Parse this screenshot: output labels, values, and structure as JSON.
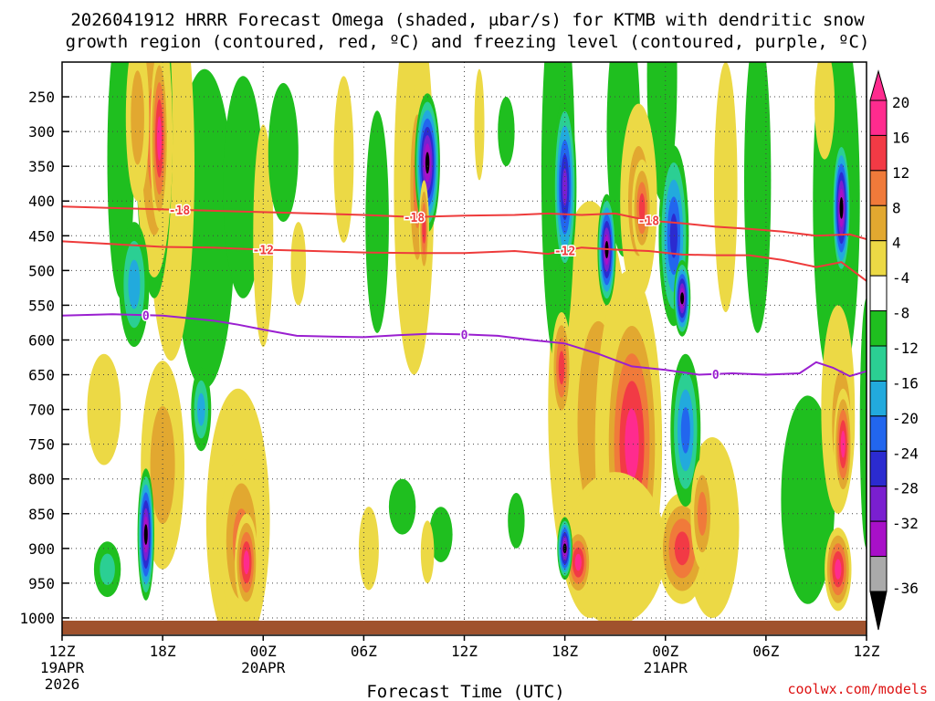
{
  "chart_data": {
    "type": "heatmap",
    "title_line1": "2026041912 HRRR Forecast Omega (shaded, μbar/s) for KTMB with dendritic snow",
    "title_line2": "growth region (contoured, red, ºC) and freezing level (contoured, purple, ºC)",
    "xlabel": "Forecast Time (UTC)",
    "credit": "coolwx.com/models",
    "x_range_hours": [
      0,
      48
    ],
    "y_range_hpa": [
      200,
      1025
    ],
    "x_ticks": [
      {
        "hour": 0,
        "label": "12Z",
        "sub1": "19APR",
        "sub2": "2026"
      },
      {
        "hour": 6,
        "label": "18Z",
        "sub1": "",
        "sub2": ""
      },
      {
        "hour": 12,
        "label": "00Z",
        "sub1": "20APR",
        "sub2": ""
      },
      {
        "hour": 18,
        "label": "06Z",
        "sub1": "",
        "sub2": ""
      },
      {
        "hour": 24,
        "label": "12Z",
        "sub1": "",
        "sub2": ""
      },
      {
        "hour": 30,
        "label": "18Z",
        "sub1": "",
        "sub2": ""
      },
      {
        "hour": 36,
        "label": "00Z",
        "sub1": "21APR",
        "sub2": ""
      },
      {
        "hour": 42,
        "label": "06Z",
        "sub1": "",
        "sub2": ""
      },
      {
        "hour": 48,
        "label": "12Z",
        "sub1": "",
        "sub2": ""
      }
    ],
    "y_ticks": [
      250,
      300,
      350,
      400,
      450,
      500,
      550,
      600,
      650,
      700,
      750,
      800,
      850,
      900,
      950,
      1000
    ],
    "colorbar": [
      {
        "label": "20",
        "color": "#ff2b8e"
      },
      {
        "label": "16",
        "color": "#f23a45"
      },
      {
        "label": "12",
        "color": "#f07a3a"
      },
      {
        "label": "8",
        "color": "#e2a830"
      },
      {
        "label": "4",
        "color": "#ecd945"
      },
      {
        "label": "-4",
        "color": "#ffffff"
      },
      {
        "label": "-8",
        "color": "#1fbf1f"
      },
      {
        "label": "-12",
        "color": "#2bcf93"
      },
      {
        "label": "-16",
        "color": "#22aadd"
      },
      {
        "label": "-20",
        "color": "#2266ee"
      },
      {
        "label": "-24",
        "color": "#2b2bd0"
      },
      {
        "label": "-28",
        "color": "#7a1fd0"
      },
      {
        "label": "-32",
        "color": "#a810c8"
      },
      {
        "label": "-36",
        "color": "#aaaaaa"
      }
    ],
    "colorbar_extend_low": "#000000",
    "colorbar_extend_high": "#ff2b8e",
    "ground_color": "#a0522d",
    "series": [
      {
        "name": "-18C isotherm",
        "label": "-18",
        "color": "#ee3b3b",
        "x": [
          0,
          3,
          6,
          9,
          12,
          15,
          18,
          21,
          24,
          27,
          29,
          31,
          33,
          35,
          37,
          39,
          41,
          43,
          45,
          47,
          48
        ],
        "y": [
          408,
          410,
          412,
          414,
          416,
          418,
          420,
          423,
          421,
          420,
          418,
          420,
          418,
          428,
          432,
          437,
          440,
          444,
          450,
          448,
          455
        ],
        "label_at": [
          7,
          21,
          35
        ]
      },
      {
        "name": "-12C isotherm",
        "label": "-12",
        "color": "#ee3b3b",
        "x": [
          0,
          3,
          6,
          9,
          12,
          15,
          18,
          21,
          24,
          27,
          29,
          31,
          33,
          35,
          37,
          39,
          41,
          43,
          45,
          46.5,
          48
        ],
        "y": [
          458,
          462,
          466,
          467,
          470,
          472,
          474,
          475,
          475,
          472,
          476,
          467,
          470,
          472,
          477,
          478,
          478,
          485,
          495,
          488,
          515
        ],
        "label_at": [
          12,
          30
        ]
      },
      {
        "name": "Freezing level",
        "label": "0",
        "color": "#9a1fd0",
        "x": [
          0,
          3,
          6,
          9,
          10.5,
          12,
          14,
          16,
          18,
          20,
          22,
          24,
          26,
          28,
          30,
          32,
          34,
          36,
          38,
          40,
          42,
          44,
          45,
          46,
          47,
          48
        ],
        "y": [
          565,
          563,
          565,
          572,
          578,
          585,
          594,
          595,
          596,
          593,
          591,
          592,
          594,
          600,
          605,
          620,
          638,
          643,
          650,
          648,
          650,
          648,
          632,
          640,
          652,
          645
        ],
        "label_at": [
          5,
          24,
          39
        ]
      }
    ],
    "omega_cells": [
      {
        "x": 21.8,
        "y": 345,
        "rx": 0.75,
        "ry": 100,
        "min": -36
      },
      {
        "x": 32.5,
        "y": 470,
        "rx": 0.55,
        "ry": 80,
        "min": -36
      },
      {
        "x": 37.0,
        "y": 540,
        "rx": 0.5,
        "ry": 55,
        "min": -36
      },
      {
        "x": 46.5,
        "y": 410,
        "rx": 0.55,
        "ry": 100,
        "min": -36
      },
      {
        "x": 5.0,
        "y": 880,
        "rx": 0.5,
        "ry": 95,
        "min": -36
      },
      {
        "x": 30.0,
        "y": 900,
        "rx": 0.45,
        "ry": 45,
        "min": -36
      },
      {
        "x": 30.0,
        "y": 380,
        "rx": 0.7,
        "ry": 130,
        "min": -28
      },
      {
        "x": 36.5,
        "y": 450,
        "rx": 0.9,
        "ry": 130,
        "min": -24
      },
      {
        "x": 37.2,
        "y": 730,
        "rx": 0.9,
        "ry": 110,
        "min": -20
      },
      {
        "x": 4.3,
        "y": 520,
        "rx": 0.9,
        "ry": 90,
        "min": -16
      },
      {
        "x": 8.3,
        "y": 700,
        "rx": 0.6,
        "ry": 60,
        "min": -16
      },
      {
        "x": 2.7,
        "y": 930,
        "rx": 0.8,
        "ry": 40,
        "min": -12
      },
      {
        "x": 3.5,
        "y": 340,
        "rx": 0.8,
        "ry": 200,
        "min": -8
      },
      {
        "x": 5.5,
        "y": 300,
        "rx": 1.1,
        "ry": 240,
        "min": -8
      },
      {
        "x": 8.5,
        "y": 440,
        "rx": 1.8,
        "ry": 230,
        "min": -8
      },
      {
        "x": 10.8,
        "y": 380,
        "rx": 1.2,
        "ry": 160,
        "min": -8
      },
      {
        "x": 13.2,
        "y": 330,
        "rx": 0.9,
        "ry": 100,
        "min": -8
      },
      {
        "x": 18.8,
        "y": 430,
        "rx": 0.7,
        "ry": 160,
        "min": -8
      },
      {
        "x": 20.3,
        "y": 840,
        "rx": 0.8,
        "ry": 40,
        "min": -8
      },
      {
        "x": 27.1,
        "y": 860,
        "rx": 0.5,
        "ry": 40,
        "min": -8
      },
      {
        "x": 29.6,
        "y": 360,
        "rx": 1.0,
        "ry": 280,
        "min": -8
      },
      {
        "x": 33.5,
        "y": 300,
        "rx": 1.0,
        "ry": 180,
        "min": -8
      },
      {
        "x": 35.8,
        "y": 220,
        "rx": 0.9,
        "ry": 180,
        "min": -8
      },
      {
        "x": 41.5,
        "y": 370,
        "rx": 0.8,
        "ry": 220,
        "min": -8
      },
      {
        "x": 46.2,
        "y": 400,
        "rx": 1.4,
        "ry": 280,
        "min": -8
      },
      {
        "x": 44.5,
        "y": 830,
        "rx": 1.6,
        "ry": 150,
        "min": -8
      },
      {
        "x": 48.0,
        "y": 720,
        "rx": 0.4,
        "ry": 180,
        "min": -8
      },
      {
        "x": 5.8,
        "y": 310,
        "rx": 0.55,
        "ry": 130,
        "min": 20
      },
      {
        "x": 5.5,
        "y": 310,
        "rx": 1.1,
        "ry": 200,
        "min": 12
      },
      {
        "x": 4.5,
        "y": 280,
        "rx": 0.7,
        "ry": 120,
        "min": 8
      },
      {
        "x": 6.5,
        "y": 350,
        "rx": 1.4,
        "ry": 280,
        "min": 4
      },
      {
        "x": 2.5,
        "y": 700,
        "rx": 1.0,
        "ry": 80,
        "min": 4
      },
      {
        "x": 6.0,
        "y": 780,
        "rx": 1.3,
        "ry": 150,
        "min": 8
      },
      {
        "x": 12.0,
        "y": 450,
        "rx": 0.6,
        "ry": 160,
        "min": 4
      },
      {
        "x": 11.0,
        "y": 920,
        "rx": 0.7,
        "ry": 70,
        "min": 20
      },
      {
        "x": 10.7,
        "y": 890,
        "rx": 1.3,
        "ry": 120,
        "min": 12
      },
      {
        "x": 10.5,
        "y": 860,
        "rx": 1.9,
        "ry": 190,
        "min": 4
      },
      {
        "x": 14.1,
        "y": 490,
        "rx": 0.45,
        "ry": 60,
        "min": 4
      },
      {
        "x": 16.8,
        "y": 340,
        "rx": 0.6,
        "ry": 120,
        "min": 4
      },
      {
        "x": 21.0,
        "y": 380,
        "rx": 1.2,
        "ry": 270,
        "min": 4
      },
      {
        "x": 21.2,
        "y": 380,
        "rx": 0.6,
        "ry": 150,
        "min": 12
      },
      {
        "x": 21.6,
        "y": 440,
        "rx": 0.3,
        "ry": 70,
        "min": 16
      },
      {
        "x": 18.3,
        "y": 900,
        "rx": 0.6,
        "ry": 60,
        "min": 4
      },
      {
        "x": 21.8,
        "y": 905,
        "rx": 0.4,
        "ry": 45,
        "min": 4
      },
      {
        "x": 24.9,
        "y": 290,
        "rx": 0.3,
        "ry": 80,
        "min": 4
      },
      {
        "x": 31.5,
        "y": 700,
        "rx": 2.5,
        "ry": 300,
        "min": 4
      },
      {
        "x": 32.0,
        "y": 720,
        "rx": 2.2,
        "ry": 260,
        "min": 8
      },
      {
        "x": 33.8,
        "y": 750,
        "rx": 2.0,
        "ry": 250,
        "min": 12
      },
      {
        "x": 34.0,
        "y": 750,
        "rx": 1.7,
        "ry": 210,
        "min": 20
      },
      {
        "x": 29.8,
        "y": 640,
        "rx": 0.6,
        "ry": 80,
        "min": 16
      },
      {
        "x": 30.8,
        "y": 920,
        "rx": 0.8,
        "ry": 50,
        "min": 20
      },
      {
        "x": 34.4,
        "y": 400,
        "rx": 1.1,
        "ry": 140,
        "min": 8
      },
      {
        "x": 34.6,
        "y": 410,
        "rx": 0.6,
        "ry": 70,
        "min": 16
      },
      {
        "x": 33.0,
        "y": 900,
        "rx": 3.0,
        "ry": 110,
        "min": 4
      },
      {
        "x": 38.8,
        "y": 870,
        "rx": 1.6,
        "ry": 130,
        "min": 4
      },
      {
        "x": 38.2,
        "y": 850,
        "rx": 0.7,
        "ry": 80,
        "min": 12
      },
      {
        "x": 37.0,
        "y": 900,
        "rx": 1.5,
        "ry": 80,
        "min": 16
      },
      {
        "x": 39.6,
        "y": 380,
        "rx": 0.7,
        "ry": 180,
        "min": 4
      },
      {
        "x": 46.3,
        "y": 700,
        "rx": 1.0,
        "ry": 150,
        "min": 4
      },
      {
        "x": 46.5,
        "y": 720,
        "rx": 0.8,
        "ry": 110,
        "min": 12
      },
      {
        "x": 46.6,
        "y": 750,
        "rx": 0.55,
        "ry": 80,
        "min": 20
      },
      {
        "x": 46.3,
        "y": 930,
        "rx": 0.8,
        "ry": 60,
        "min": 20
      },
      {
        "x": 45.5,
        "y": 260,
        "rx": 0.6,
        "ry": 80,
        "min": 4
      },
      {
        "x": 22.6,
        "y": 880,
        "rx": 0.7,
        "ry": 40,
        "min": -8
      },
      {
        "x": 26.5,
        "y": 300,
        "rx": 0.5,
        "ry": 50,
        "min": -8
      }
    ]
  }
}
